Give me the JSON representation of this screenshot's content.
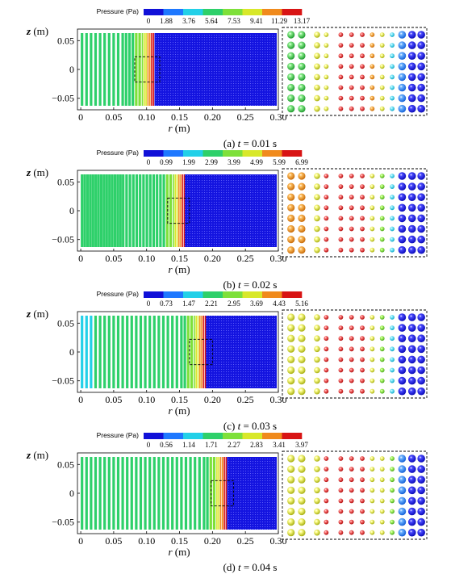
{
  "chart_data": [
    {
      "type": "scatter",
      "caption": {
        "prefix": "(a) ",
        "var": "t",
        "rest": " = 0.01 s"
      },
      "legend_title": "Pressure (Pa)",
      "colorbar_ticks": [
        "0",
        "1.88",
        "3.76",
        "5.64",
        "7.53",
        "9.41",
        "11.29",
        "13.17"
      ],
      "xlabel": {
        "var": "r",
        "unit": " (m)"
      },
      "ylabel": {
        "var": "z",
        "unit": " (m)"
      },
      "xticks": [
        "0",
        "0.05",
        "0.10",
        "0.15",
        "0.20",
        "0.25",
        "0.30"
      ],
      "yticks": [
        "0.05",
        "0",
        "−0.05"
      ],
      "xlim": [
        -0.005,
        0.3
      ],
      "ylim": [
        -0.07,
        0.07
      ],
      "front_r": 0.112,
      "compressed_from": 0.06,
      "zoom_box": {
        "r": [
          0.082,
          0.12
        ],
        "z": [
          -0.022,
          0.022
        ]
      },
      "inset_colors": [
        "green",
        "green",
        "yellow",
        "yellow",
        "red",
        "red",
        "red",
        "orange",
        "yellow",
        "cyan",
        "dodgerblue",
        "blue",
        "blue"
      ]
    },
    {
      "type": "scatter",
      "caption": {
        "prefix": "(b) ",
        "var": "t",
        "rest": " = 0.02 s"
      },
      "legend_title": "Pressure (Pa)",
      "colorbar_ticks": [
        "0",
        "0.99",
        "1.99",
        "2.99",
        "3.99",
        "4.99",
        "5.99",
        "6.99"
      ],
      "xlabel": {
        "var": "r",
        "unit": " (m)"
      },
      "ylabel": {
        "var": "z",
        "unit": " (m)"
      },
      "xticks": [
        "0",
        "0.05",
        "0.10",
        "0.15",
        "0.20",
        "0.25",
        "0.30"
      ],
      "yticks": [
        "0.05",
        "0",
        "−0.05"
      ],
      "xlim": [
        -0.005,
        0.3
      ],
      "ylim": [
        -0.07,
        0.07
      ],
      "front_r": 0.158,
      "compressed_from": 0.06,
      "zoom_box": {
        "r": [
          0.132,
          0.165
        ],
        "z": [
          -0.022,
          0.022
        ]
      },
      "inset_colors": [
        "orange",
        "orange",
        "yellow",
        "red",
        "red",
        "red",
        "red",
        "yellow",
        "lime",
        "cyan",
        "blue",
        "blue",
        "blue"
      ]
    },
    {
      "type": "scatter",
      "caption": {
        "prefix": "(c) ",
        "var": "t",
        "rest": " = 0.03 s"
      },
      "legend_title": "Pressure (Pa)",
      "colorbar_ticks": [
        "0",
        "0.73",
        "1.47",
        "2.21",
        "2.95",
        "3.69",
        "4.43",
        "5.16"
      ],
      "xlabel": {
        "var": "r",
        "unit": " (m)"
      },
      "ylabel": {
        "var": "z",
        "unit": " (m)"
      },
      "xticks": [
        "0",
        "0.05",
        "0.10",
        "0.15",
        "0.20",
        "0.25",
        "0.30"
      ],
      "yticks": [
        "0.05",
        "0",
        "−0.05"
      ],
      "xlim": [
        -0.005,
        0.3
      ],
      "ylim": [
        -0.07,
        0.07
      ],
      "front_r": 0.19,
      "compressed_from": 0.15,
      "zoom_box": {
        "r": [
          0.165,
          0.2
        ],
        "z": [
          -0.022,
          0.022
        ]
      },
      "inset_colors": [
        "yellow",
        "yellow",
        "yellow",
        "red",
        "red",
        "red",
        "red",
        "yellow",
        "lime",
        "cyan",
        "blue",
        "blue",
        "blue"
      ]
    },
    {
      "type": "scatter",
      "caption": {
        "prefix": "(d) ",
        "var": "t",
        "rest": " = 0.04 s"
      },
      "legend_title": "Pressure (Pa)",
      "colorbar_ticks": [
        "0",
        "0.56",
        "1.14",
        "1.71",
        "2.27",
        "2.83",
        "3.41",
        "3.97"
      ],
      "xlabel": {
        "var": "r",
        "unit": " (m)"
      },
      "ylabel": {
        "var": "z",
        "unit": " (m)"
      },
      "xticks": [
        "0",
        "0.05",
        "0.10",
        "0.15",
        "0.20",
        "0.25",
        "0.30"
      ],
      "yticks": [
        "0.05",
        "0",
        "−0.05"
      ],
      "xlim": [
        -0.005,
        0.3
      ],
      "ylim": [
        -0.07,
        0.07
      ],
      "front_r": 0.222,
      "compressed_from": 0.18,
      "zoom_box": {
        "r": [
          0.198,
          0.232
        ],
        "z": [
          -0.022,
          0.022
        ]
      },
      "inset_colors": [
        "yellow",
        "yellow",
        "yellow",
        "red",
        "red",
        "red",
        "red",
        "yellow",
        "yellow",
        "lime",
        "dodgerblue",
        "blue",
        "blue"
      ]
    }
  ],
  "palette": [
    "#1010d8",
    "#1e78ff",
    "#22d0e8",
    "#2ed06a",
    "#7ee03a",
    "#d8e82a",
    "#f08a1c",
    "#d81414"
  ]
}
